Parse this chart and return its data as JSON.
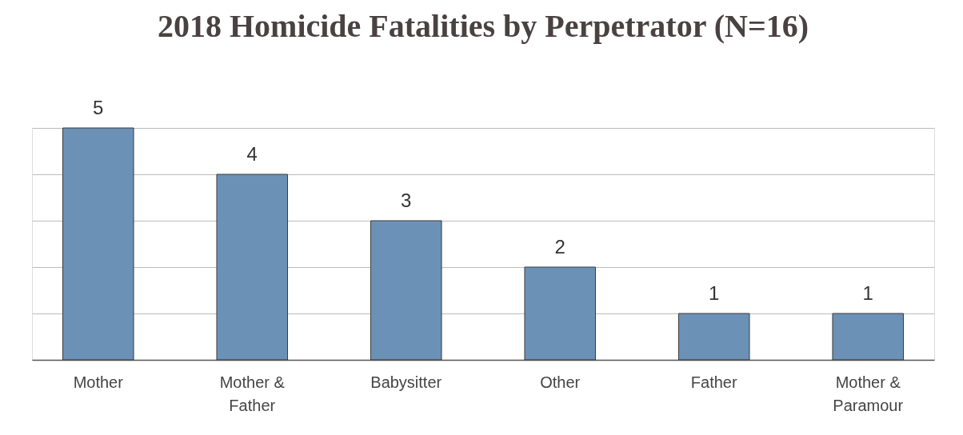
{
  "chart_data": {
    "type": "bar",
    "title": "2018 Homicide Fatalities by Perpetrator (N=16)",
    "categories": [
      "Mother",
      "Mother & Father",
      "Babysitter",
      "Other",
      "Father",
      "Mother & Paramour"
    ],
    "values": [
      5,
      4,
      3,
      2,
      1,
      1
    ],
    "color": "#6c91b6",
    "ylim": [
      0,
      5
    ],
    "yticks": [
      {
        "value": 0,
        "label": null
      },
      {
        "value": 1,
        "label": null
      },
      {
        "value": 2,
        "label": null
      },
      {
        "value": 3,
        "label": null
      },
      {
        "value": 4,
        "label": null
      },
      {
        "value": 5,
        "label": null
      }
    ],
    "grid": "y",
    "data_labels": true,
    "tick_labels": "x"
  }
}
